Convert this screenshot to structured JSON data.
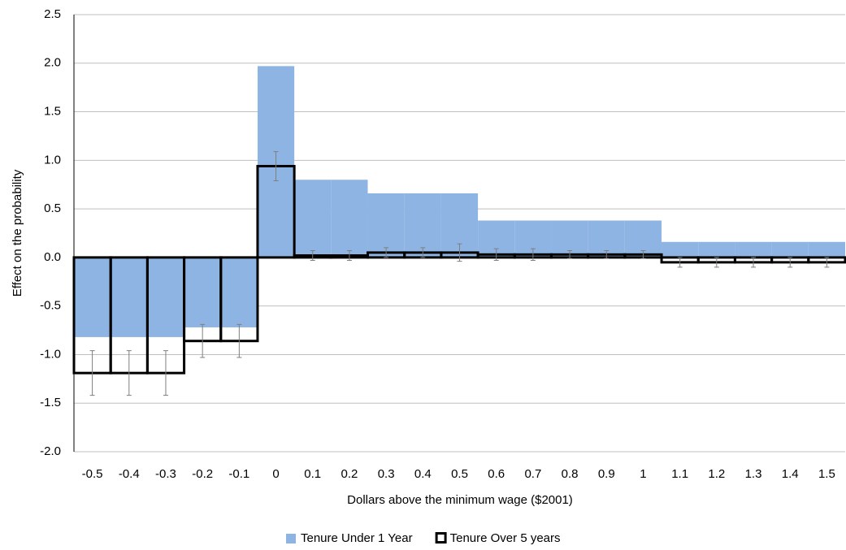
{
  "chart_data": {
    "type": "bar",
    "x_label": "Dollars above the minimum wage ($2001)",
    "y_label": "Effect on the probability",
    "categories": [
      "-0.5",
      "-0.4",
      "-0.3",
      "-0.2",
      "-0.1",
      "0",
      "0.1",
      "0.2",
      "0.3",
      "0.4",
      "0.5",
      "0.6",
      "0.7",
      "0.8",
      "0.9",
      "1",
      "1.1",
      "1.2",
      "1.3",
      "1.4",
      "1.5"
    ],
    "series": [
      {
        "name": "Tenure Under 1 Year",
        "color": "#8eb4e3",
        "style": "filled",
        "values": [
          -0.82,
          -0.82,
          -0.82,
          -0.72,
          -0.72,
          1.97,
          0.8,
          0.8,
          0.66,
          0.66,
          0.66,
          0.38,
          0.38,
          0.38,
          0.38,
          0.38,
          0.16,
          0.16,
          0.16,
          0.16,
          0.16
        ]
      },
      {
        "name": "Tenure Over 5 years",
        "color": "#000000",
        "style": "outline",
        "values": [
          -1.19,
          -1.19,
          -1.19,
          -0.86,
          -0.86,
          0.94,
          0.02,
          0.02,
          0.05,
          0.05,
          0.05,
          0.03,
          0.03,
          0.03,
          0.03,
          0.03,
          -0.05,
          -0.05,
          -0.05,
          -0.05,
          -0.05
        ],
        "errors": [
          0.23,
          0.23,
          0.23,
          0.17,
          0.17,
          0.15,
          0.05,
          0.05,
          0.05,
          0.05,
          0.09,
          0.06,
          0.06,
          0.04,
          0.04,
          0.04,
          0.05,
          0.05,
          0.05,
          0.05,
          0.05
        ],
        "error_color": "#7f7f7f"
      }
    ],
    "ylim": [
      -2,
      2.5
    ],
    "yticks": [
      {
        "value": -2,
        "label": "-2.0"
      },
      -1.5,
      {
        "value": -1,
        "label": "-1.0"
      },
      -0.5,
      {
        "value": 0,
        "label": "0.0"
      },
      0.5,
      {
        "value": 1,
        "label": "1.0"
      },
      1.5,
      {
        "value": 2,
        "label": "2.0"
      },
      2.5
    ],
    "grid": true,
    "legend": "bottom"
  }
}
